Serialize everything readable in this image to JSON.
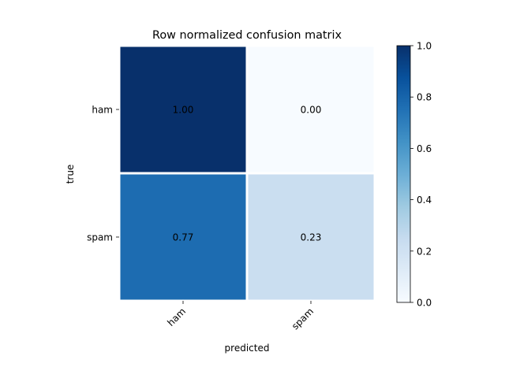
{
  "chart_data": {
    "type": "heatmap",
    "title": "Row normalized confusion matrix",
    "xlabel": "predicted",
    "ylabel": "true",
    "x_categories": [
      "ham",
      "spam"
    ],
    "y_categories": [
      "ham",
      "spam"
    ],
    "values": [
      [
        1.0,
        0.0
      ],
      [
        0.77,
        0.23
      ]
    ],
    "cell_labels": [
      [
        "1.00",
        "0.00"
      ],
      [
        "0.77",
        "0.23"
      ]
    ],
    "colormap": "Blues",
    "colorbar": {
      "range": [
        0,
        1
      ],
      "ticks": [
        "0.0",
        "0.2",
        "0.4",
        "0.6",
        "0.8",
        "1.0"
      ]
    },
    "colors": {
      "cell_border": "#ffffff",
      "text_dark": "#000000",
      "text_light": "#ffffff"
    }
  }
}
